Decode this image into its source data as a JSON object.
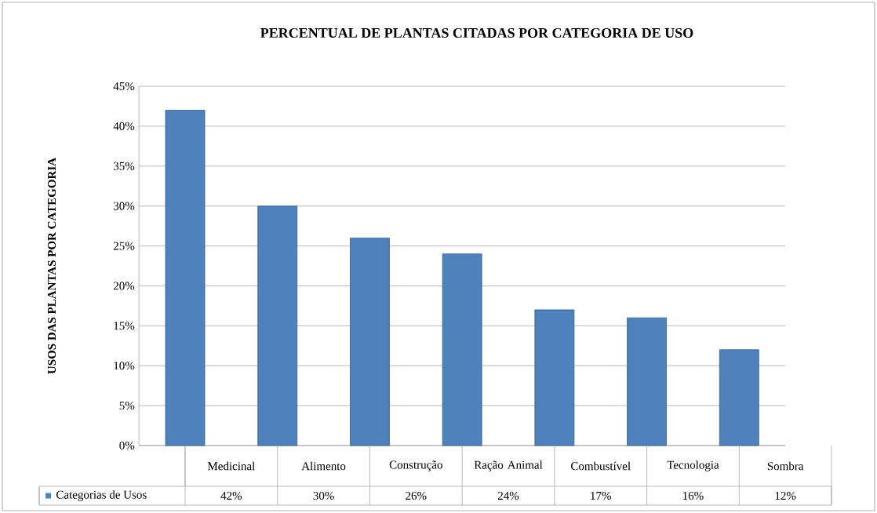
{
  "chart_data": {
    "type": "bar",
    "title": "PERCENTUAL DE PLANTAS CITADAS POR CATEGORIA DE USO",
    "ylabel": "USOS DAS PLANTAS POR CATEGORIA",
    "categories": [
      "Medicinal",
      "Alimento",
      "Construção",
      "Ração Animal",
      "Combustível",
      "Tecnologia",
      "Sombra"
    ],
    "series": [
      {
        "name": "Categorias de Usos",
        "color": "#4f81bd",
        "values": [
          42,
          30,
          26,
          24,
          17,
          16,
          12
        ],
        "value_labels": [
          "42%",
          "30%",
          "26%",
          "24%",
          "17%",
          "16%",
          "12%"
        ]
      }
    ],
    "ylim": [
      0,
      45
    ],
    "yticks": [
      {
        "value": 0,
        "label": "0%"
      },
      {
        "value": 5,
        "label": "5%"
      },
      {
        "value": 10,
        "label": "10%"
      },
      {
        "value": 15,
        "label": "15%"
      },
      {
        "value": 20,
        "label": "20%"
      },
      {
        "value": 25,
        "label": "25%"
      },
      {
        "value": 30,
        "label": "30%"
      },
      {
        "value": 35,
        "label": "35%"
      },
      {
        "value": 40,
        "label": "40%"
      },
      {
        "value": 45,
        "label": "45%"
      }
    ],
    "grid": "y",
    "legend": "bottom"
  }
}
